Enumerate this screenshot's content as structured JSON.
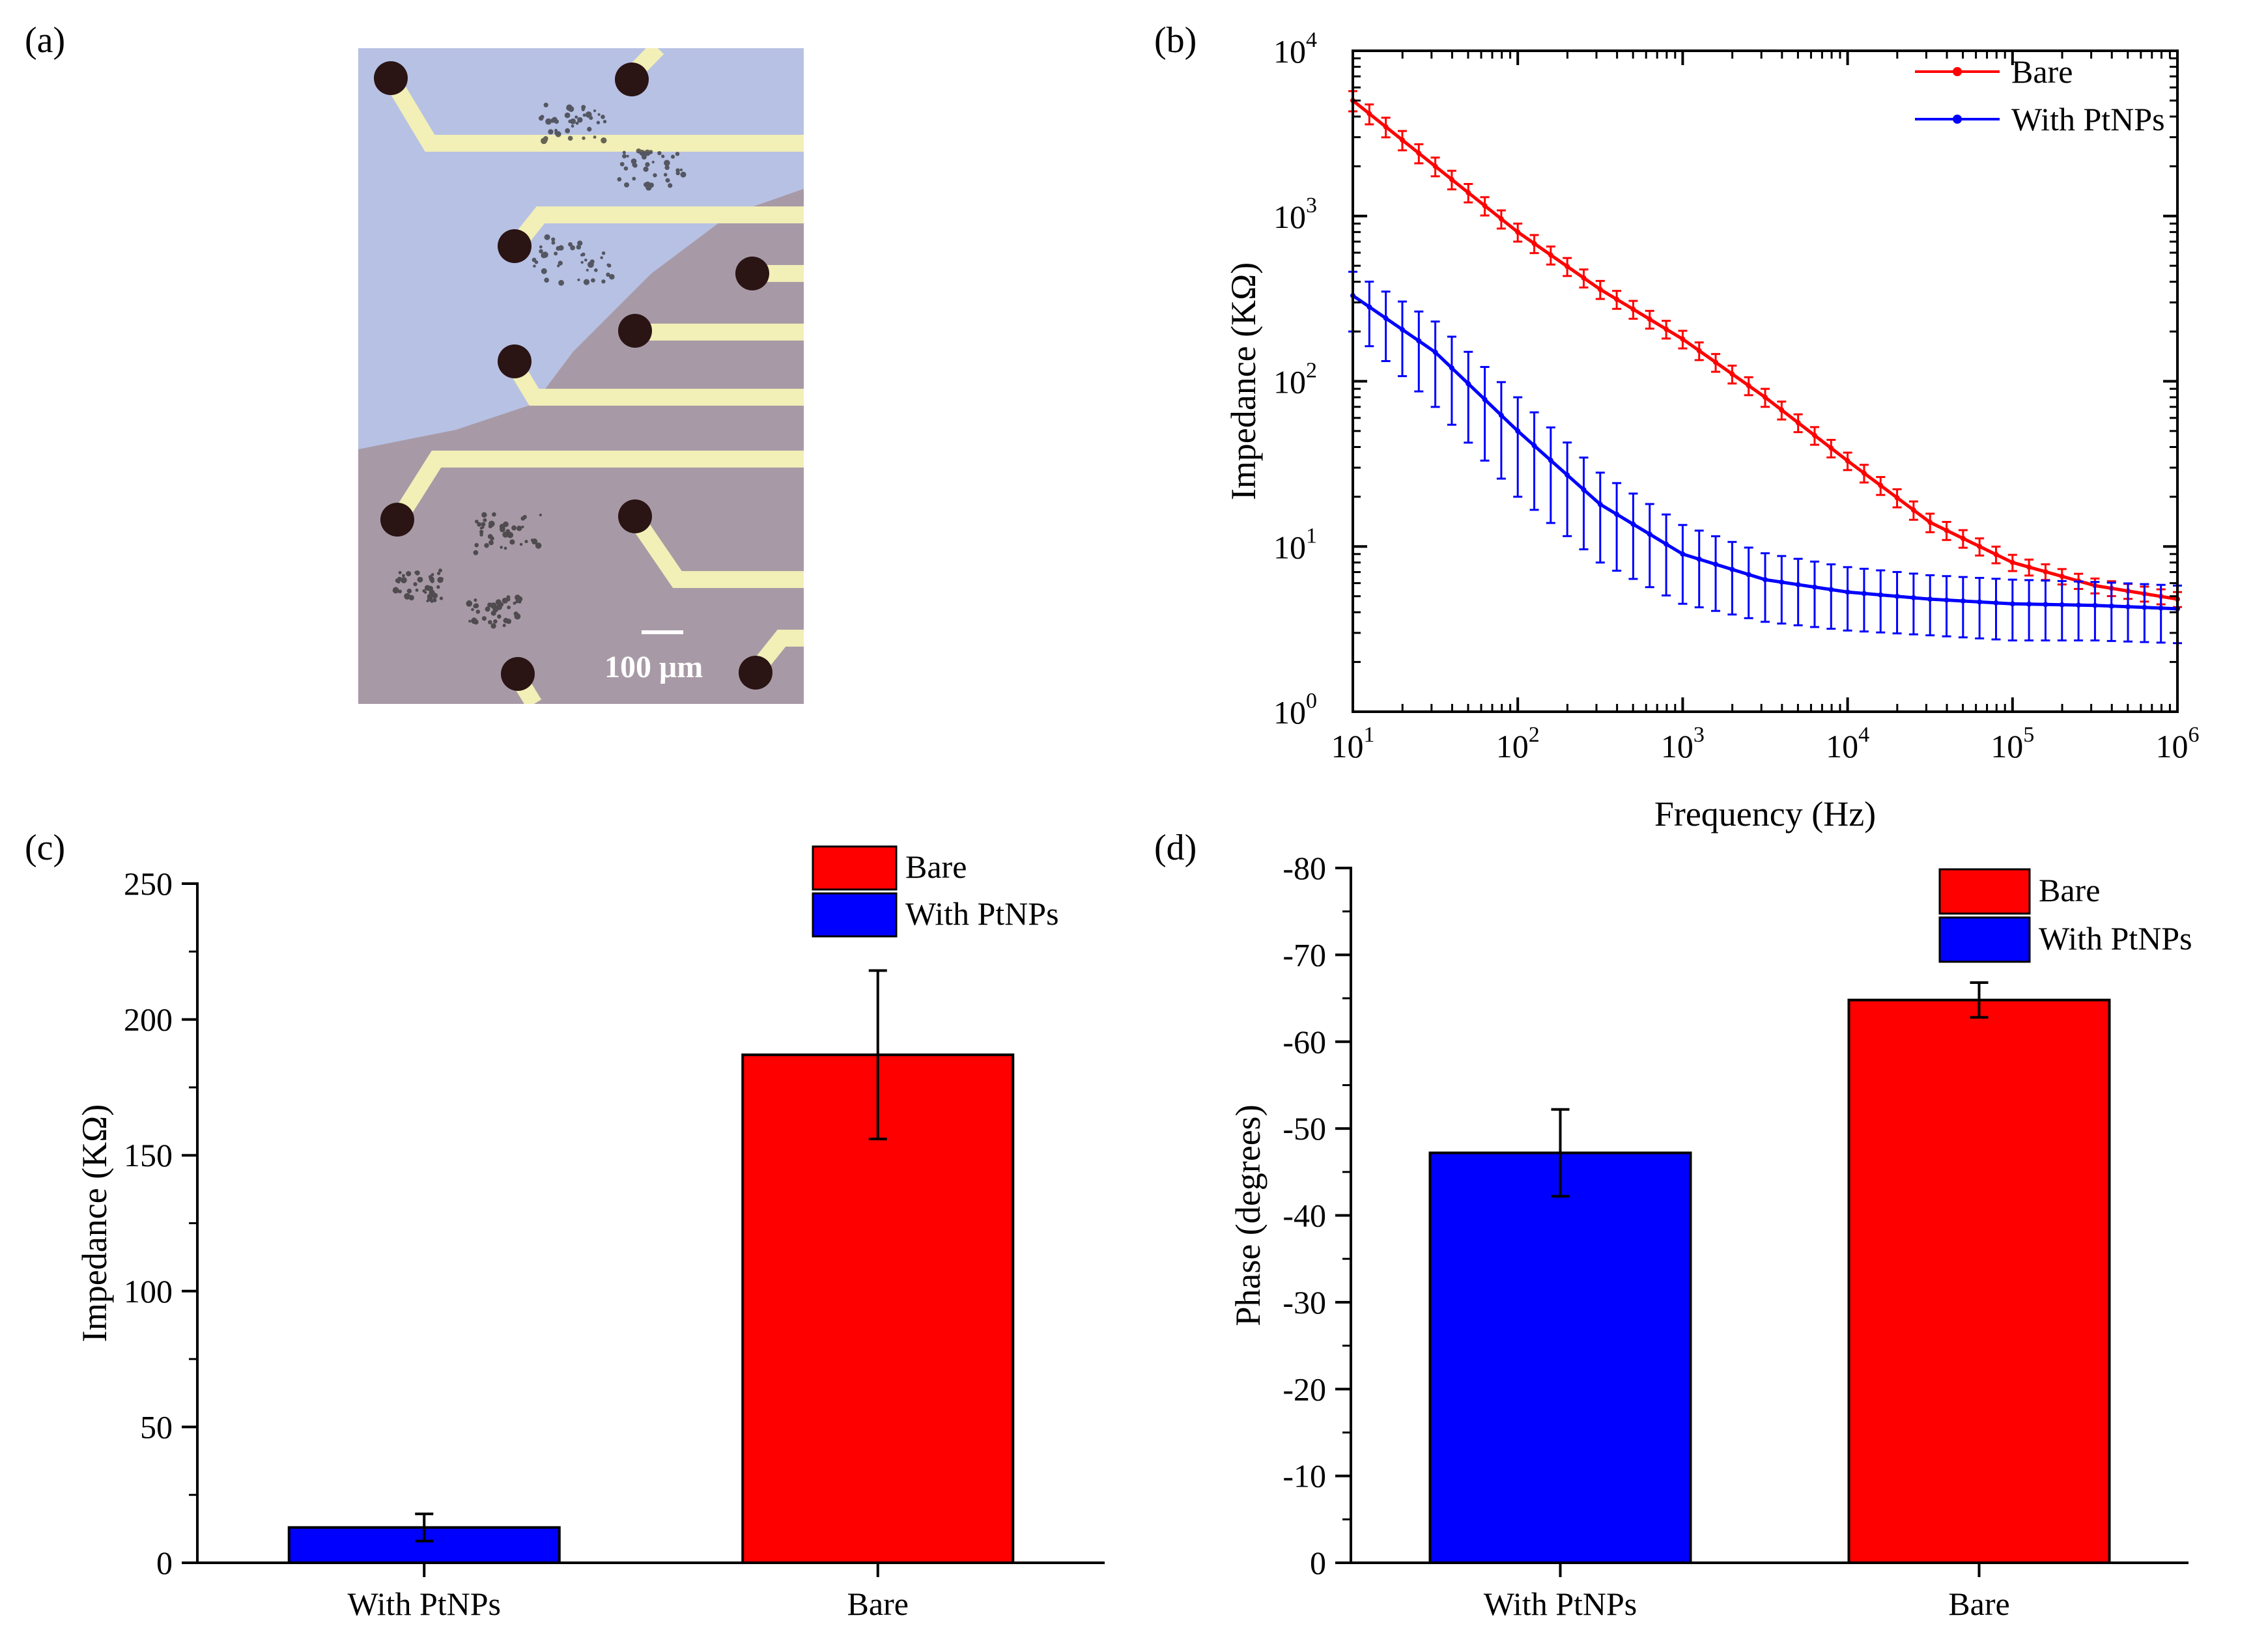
{
  "colors": {
    "bare": "#ff0000",
    "ptnps": "#0000ff",
    "axis": "#000000",
    "micro_bg": "#a79aa6",
    "micro_film": "#b7c1e4",
    "micro_trace": "#f2efb7",
    "micro_pad": "#2a1414"
  },
  "panels": {
    "a": {
      "label": "(a)",
      "scale_bar": "100 μm",
      "icons": [
        "microscope-image"
      ]
    },
    "b": {
      "label": "(b)"
    },
    "c": {
      "label": "(c)"
    },
    "d": {
      "label": "(d)"
    }
  },
  "chart_data": [
    {
      "panel": "b",
      "type": "line",
      "title": "",
      "xlabel": "Frequency (Hz)",
      "ylabel": "Impedance (KΩ)",
      "xscale": "log",
      "yscale": "log",
      "xlim": [
        10,
        1000000
      ],
      "ylim": [
        1,
        10000
      ],
      "x_ticks": [
        {
          "value": 10,
          "base": "10",
          "exp": "1"
        },
        {
          "value": 100,
          "base": "10",
          "exp": "2"
        },
        {
          "value": 1000,
          "base": "10",
          "exp": "3"
        },
        {
          "value": 10000,
          "base": "10",
          "exp": "4"
        },
        {
          "value": 100000,
          "base": "10",
          "exp": "5"
        },
        {
          "value": 1000000,
          "base": "10",
          "exp": "6"
        }
      ],
      "y_ticks": [
        {
          "value": 1,
          "base": "10",
          "exp": "0"
        },
        {
          "value": 10,
          "base": "10",
          "exp": "1"
        },
        {
          "value": 100,
          "base": "10",
          "exp": "2"
        },
        {
          "value": 1000,
          "base": "10",
          "exp": "3"
        },
        {
          "value": 10000,
          "base": "10",
          "exp": "4"
        }
      ],
      "legend_position": "top-right",
      "series": [
        {
          "name": "Bare",
          "color": "#ff0000",
          "x": [
            10,
            31.6,
            100,
            316,
            1000,
            3162,
            10000,
            31623,
            100000,
            316228,
            1000000
          ],
          "y": [
            5000,
            2000,
            800,
            360,
            180,
            80,
            33,
            14,
            8,
            5.8,
            4.8
          ],
          "err": [
            700,
            260,
            100,
            45,
            22,
            10,
            4,
            1.8,
            0.9,
            0.6,
            0.5
          ]
        },
        {
          "name": "With PtNPs",
          "color": "#0000ff",
          "x": [
            10,
            31.6,
            100,
            316,
            1000,
            3162,
            10000,
            31623,
            100000,
            316228,
            1000000
          ],
          "y": [
            330,
            150,
            50,
            18,
            9,
            6.3,
            5.3,
            4.8,
            4.5,
            4.4,
            4.2
          ],
          "err": [
            130,
            80,
            30,
            10,
            4.5,
            2.8,
            2.2,
            1.9,
            1.8,
            1.7,
            1.6
          ]
        }
      ]
    },
    {
      "panel": "c",
      "type": "bar",
      "title": "",
      "xlabel": "",
      "ylabel": "Impedance (KΩ)",
      "ylim": [
        0,
        250
      ],
      "y_ticks": [
        "0",
        "50",
        "100",
        "150",
        "200",
        "250"
      ],
      "categories": [
        "With PtNPs",
        "Bare"
      ],
      "values": [
        13,
        187
      ],
      "errors": [
        5,
        31
      ],
      "bar_colors": [
        "#0000ff",
        "#ff0000"
      ],
      "legend": [
        "Bare",
        "With PtNPs"
      ],
      "legend_position": "top-right"
    },
    {
      "panel": "d",
      "type": "bar",
      "title": "",
      "xlabel": "",
      "ylabel": "Phase (degrees)",
      "ylim": [
        0,
        -80
      ],
      "y_ticks": [
        "0",
        "-10",
        "-20",
        "-30",
        "-40",
        "-50",
        "-60",
        "-70",
        "-80"
      ],
      "categories": [
        "With PtNPs",
        "Bare"
      ],
      "values": [
        -47.2,
        -64.8
      ],
      "errors": [
        5,
        2
      ],
      "bar_colors": [
        "#0000ff",
        "#ff0000"
      ],
      "legend": [
        "Bare",
        "With PtNPs"
      ],
      "legend_position": "top-right"
    }
  ]
}
